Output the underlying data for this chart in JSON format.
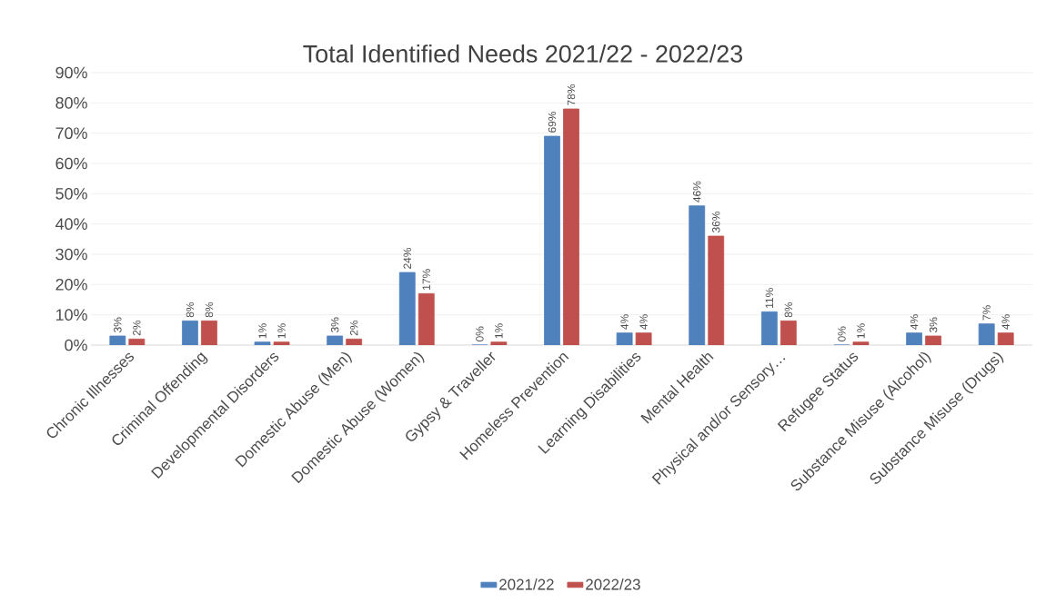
{
  "chart_data": {
    "type": "bar",
    "title": "Total Identified Needs 2021/22 - 2022/23",
    "categories": [
      "Chronic Illnesses",
      "Criminal Offending",
      "Developmental Disorders",
      "Domestic Abuse (Men)",
      "Domestic Abuse (Women)",
      "Gypsy & Traveller",
      "Homeless Prevention",
      "Learning Disabilities",
      "Mental Health",
      "Physical and/or Sensory…",
      "Refugee Status",
      "Substance Misuse (Alcohol)",
      "Substance Misuse (Drugs)"
    ],
    "series": [
      {
        "name": "2021/22",
        "color": "#4f81bd",
        "values": [
          3,
          8,
          1,
          3,
          24,
          0,
          69,
          4,
          46,
          11,
          0,
          4,
          7
        ],
        "value_labels": [
          "3%",
          "8%",
          "1%",
          "3%",
          "24%",
          "0%",
          "69%",
          "4%",
          "46%",
          "11%",
          "0%",
          "4%",
          "7%"
        ]
      },
      {
        "name": "2022/23",
        "color": "#c0504d",
        "values": [
          2,
          8,
          1,
          2,
          17,
          1,
          78,
          4,
          36,
          8,
          1,
          3,
          4
        ],
        "value_labels": [
          "2%",
          "8%",
          "1%",
          "2%",
          "17%",
          "1%",
          "78%",
          "4%",
          "36%",
          "8%",
          "1%",
          "3%",
          "4%"
        ]
      }
    ],
    "ylim": [
      0,
      90
    ],
    "yticks": [
      {
        "value": 0,
        "label": "0%"
      },
      {
        "value": 10,
        "label": "10%"
      },
      {
        "value": 20,
        "label": "20%"
      },
      {
        "value": 30,
        "label": "30%"
      },
      {
        "value": 40,
        "label": "40%"
      },
      {
        "value": 50,
        "label": "50%"
      },
      {
        "value": 60,
        "label": "60%"
      },
      {
        "value": 70,
        "label": "70%"
      },
      {
        "value": 80,
        "label": "80%"
      },
      {
        "value": 90,
        "label": "90%"
      }
    ],
    "grid": "y",
    "legend": "bottom"
  }
}
